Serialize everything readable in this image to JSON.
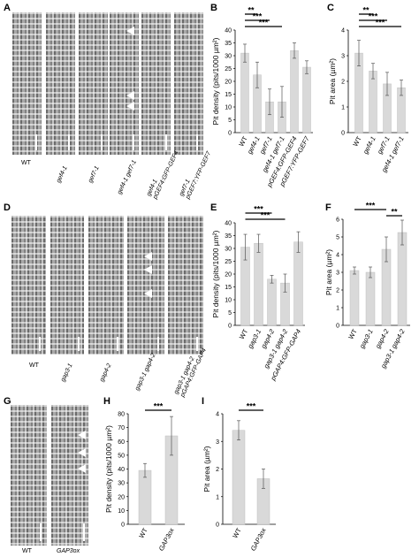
{
  "panel_letters": {
    "A": "A",
    "B": "B",
    "C": "C",
    "D": "D",
    "E": "E",
    "F": "F",
    "G": "G",
    "H": "H",
    "I": "I"
  },
  "micro_labels": {
    "A": [
      "WT",
      "gef4-1",
      "gef7-1",
      "gef4-1 gef7-1",
      "gef4-1\npGEF4:GFP-GEF4",
      "gef7-1\npGEF7:YFP-GEF7"
    ],
    "D": [
      "WT",
      "gap3-1",
      "gap4-2",
      "gap3-1 gap4-2",
      "gap3-1 gap4-2\npGAP4:GFP-GAP4"
    ],
    "G": [
      "WT",
      "GAP3ox"
    ]
  },
  "colors": {
    "bar": "#d9d9d9",
    "bar_edge": "#bfbfbf",
    "axis": "#000000"
  },
  "chart_data": [
    {
      "id": "B",
      "type": "bar",
      "ylabel": "Pit density (pits/1000 µm²)",
      "ylim": [
        0,
        40
      ],
      "yticks": [
        0,
        5,
        10,
        15,
        20,
        25,
        30,
        35,
        40
      ],
      "categories": [
        "WT",
        "gef4-1",
        "gef7-1",
        "gef4-1 gef7-1",
        "pGEF4:GFP-GEF4",
        "pGEF7:YFP-GEF7"
      ],
      "category_italic": [
        false,
        true,
        true,
        true,
        true,
        true
      ],
      "values": [
        31,
        22.5,
        12,
        12,
        32,
        25.5
      ],
      "errors": [
        3.5,
        5,
        5,
        6,
        3,
        2.5
      ],
      "significance": [
        {
          "from": 0,
          "to": 1,
          "label": "**"
        },
        {
          "from": 0,
          "to": 2,
          "label": "***"
        },
        {
          "from": 0,
          "to": 3,
          "label": "***"
        }
      ]
    },
    {
      "id": "C",
      "type": "bar",
      "ylabel": "Pit area (µm²)",
      "ylim": [
        0,
        4
      ],
      "yticks": [
        0,
        1,
        2,
        3,
        4
      ],
      "categories": [
        "WT",
        "gef4-1",
        "gef7-1",
        "gef4-1 gef7-1"
      ],
      "category_italic": [
        false,
        true,
        true,
        true
      ],
      "values": [
        3.1,
        2.4,
        1.9,
        1.75
      ],
      "errors": [
        0.5,
        0.3,
        0.45,
        0.3
      ],
      "significance": [
        {
          "from": 0,
          "to": 1,
          "label": "**"
        },
        {
          "from": 0,
          "to": 2,
          "label": "***"
        },
        {
          "from": 0,
          "to": 3,
          "label": "***"
        }
      ]
    },
    {
      "id": "E",
      "type": "bar",
      "ylabel": "Pit density (pits/1000 µm²)",
      "ylim": [
        0,
        40
      ],
      "yticks": [
        0,
        5,
        10,
        15,
        20,
        25,
        30,
        35,
        40
      ],
      "categories": [
        "WT",
        "gap3-1",
        "gap4-2",
        "gap3-1 gap4-2",
        "pGAP4:GFP-GAP4"
      ],
      "category_italic": [
        false,
        true,
        true,
        true,
        true
      ],
      "values": [
        30.5,
        32,
        18,
        16.5,
        32.5
      ],
      "errors": [
        5,
        3.5,
        1.5,
        3.5,
        4
      ],
      "significance": [
        {
          "from": 0,
          "to": 2,
          "label": "***"
        },
        {
          "from": 0,
          "to": 3,
          "label": "***"
        }
      ]
    },
    {
      "id": "F",
      "type": "bar",
      "ylabel": "Pit area (µm²)",
      "ylim": [
        0,
        6
      ],
      "yticks": [
        0,
        1,
        2,
        3,
        4,
        5,
        6
      ],
      "categories": [
        "WT",
        "gap3-1",
        "gap4-2",
        "gap3-1 gap4-2"
      ],
      "category_italic": [
        false,
        true,
        true,
        true
      ],
      "values": [
        3.1,
        3.0,
        4.3,
        5.25
      ],
      "errors": [
        0.2,
        0.3,
        0.7,
        0.7
      ],
      "significance": [
        {
          "from": 0,
          "to": 2,
          "label": "***"
        },
        {
          "from": 2,
          "to": 3,
          "label": "**"
        }
      ]
    },
    {
      "id": "H",
      "type": "bar",
      "ylabel": "Pit density (pits/1000 µm²)",
      "ylim": [
        0,
        80
      ],
      "yticks": [
        0,
        10,
        20,
        30,
        40,
        50,
        60,
        70,
        80
      ],
      "categories": [
        "WT",
        "GAP3ox"
      ],
      "category_italic": [
        false,
        true
      ],
      "values": [
        39,
        64
      ],
      "errors": [
        5,
        14
      ],
      "significance": [
        {
          "from": 0,
          "to": 1,
          "label": "***"
        }
      ]
    },
    {
      "id": "I",
      "type": "bar",
      "ylabel": "Pit area (µm²)",
      "ylim": [
        0,
        4
      ],
      "yticks": [
        0,
        1,
        2,
        3,
        4
      ],
      "categories": [
        "WT",
        "GAP3ox"
      ],
      "category_italic": [
        false,
        true
      ],
      "values": [
        3.4,
        1.65
      ],
      "errors": [
        0.35,
        0.35
      ],
      "significance": [
        {
          "from": 0,
          "to": 1,
          "label": "***"
        }
      ]
    }
  ]
}
